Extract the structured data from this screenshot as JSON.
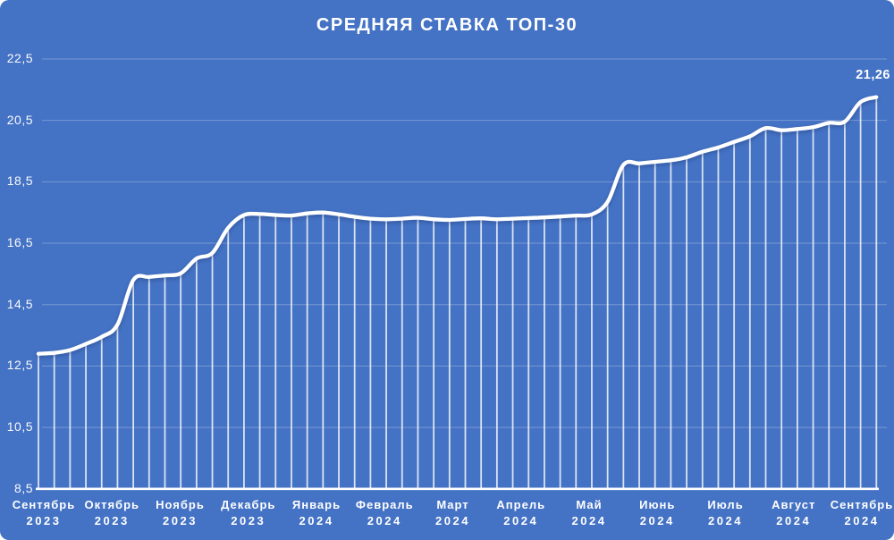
{
  "chart_data": {
    "type": "line",
    "title": "СРЕДНЯЯ СТАВКА ТОП-30",
    "end_label": "21,26",
    "legend": "none",
    "grid": true,
    "y_axis": {
      "min": 8.5,
      "max": 22.5,
      "step": 2,
      "tick_values": [
        8.5,
        10.5,
        12.5,
        14.5,
        16.5,
        18.5,
        20.5,
        22.5
      ],
      "tick_labels": [
        "8,5",
        "10,5",
        "12,5",
        "14,5",
        "16,5",
        "18,5",
        "20,5",
        "22,5"
      ]
    },
    "x_axis": {
      "months": [
        {
          "label": "Сентябрь",
          "year": "2023"
        },
        {
          "label": "Октябрь",
          "year": "2023"
        },
        {
          "label": "Ноябрь",
          "year": "2023"
        },
        {
          "label": "Декабрь",
          "year": "2023"
        },
        {
          "label": "Январь",
          "year": "2024"
        },
        {
          "label": "Февраль",
          "year": "2024"
        },
        {
          "label": "Март",
          "year": "2024"
        },
        {
          "label": "Апрель",
          "year": "2024"
        },
        {
          "label": "Май",
          "year": "2024"
        },
        {
          "label": "Июнь",
          "year": "2024"
        },
        {
          "label": "Июль",
          "year": "2024"
        },
        {
          "label": "Август",
          "year": "2024"
        },
        {
          "label": "Сентябрь",
          "year": "2024"
        }
      ]
    },
    "series": [
      {
        "name": "Средняя ставка топ-30",
        "values": [
          12.9,
          12.93,
          13.02,
          13.22,
          13.45,
          13.85,
          15.3,
          15.4,
          15.45,
          15.52,
          16.0,
          16.18,
          17.0,
          17.42,
          17.45,
          17.42,
          17.4,
          17.47,
          17.5,
          17.44,
          17.36,
          17.3,
          17.28,
          17.3,
          17.33,
          17.28,
          17.26,
          17.29,
          17.31,
          17.28,
          17.3,
          17.32,
          17.34,
          17.37,
          17.4,
          17.44,
          17.85,
          19.05,
          19.1,
          19.15,
          19.2,
          19.3,
          19.48,
          19.62,
          19.8,
          19.98,
          20.25,
          20.18,
          20.22,
          20.28,
          20.42,
          20.46,
          21.1,
          21.26
        ]
      }
    ],
    "colors": {
      "background": "#4472C4",
      "line": "#FFFFFF",
      "text": "#FFFFFF",
      "gridline": "rgba(255,255,255,0.28)",
      "drop_line": "rgba(255,255,255,0.80)"
    }
  }
}
